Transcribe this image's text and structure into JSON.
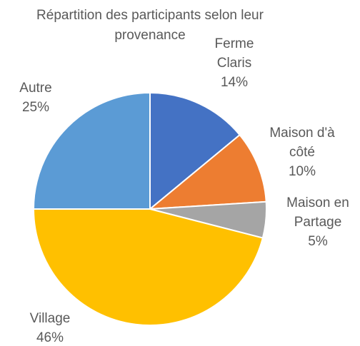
{
  "chart_data": {
    "type": "pie",
    "title": "Répartition des participants selon leur provenance",
    "categories": [
      "Ferme Claris",
      "Maison d'à côté",
      "Maison en Partage",
      "Village",
      "Autre"
    ],
    "values": [
      14,
      10,
      5,
      46,
      25
    ],
    "value_labels": [
      "14%",
      "10%",
      "5%",
      "46%",
      "25%"
    ],
    "colors": [
      "#4472c4",
      "#ed7d31",
      "#a5a5a5",
      "#ffc000",
      "#5b9bd5"
    ]
  }
}
